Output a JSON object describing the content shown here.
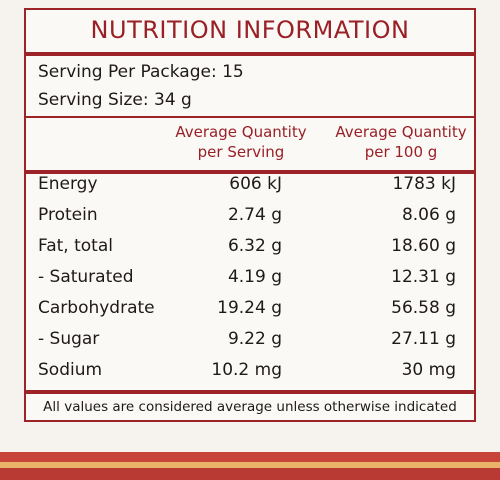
{
  "label": {
    "title": "NUTRITION INFORMATION",
    "serving_per_package": "Serving Per Package: 15",
    "serving_size": "Serving Size: 34 g",
    "columns": [
      {
        "line1": "Average Quantity",
        "line2": "per Serving"
      },
      {
        "line1": "Average Quantity",
        "line2": "per 100 g"
      }
    ],
    "rows": [
      {
        "name": "Energy",
        "per_serving": "606 kJ",
        "per_100g": "1783 kJ"
      },
      {
        "name": "Protein",
        "per_serving": "2.74 g",
        "per_100g": "8.06 g"
      },
      {
        "name": "Fat, total",
        "per_serving": "6.32 g",
        "per_100g": "18.60 g"
      },
      {
        "name": "- Saturated",
        "per_serving": "4.19 g",
        "per_100g": "12.31 g"
      },
      {
        "name": "Carbohydrate",
        "per_serving": "19.24 g",
        "per_100g": "56.58 g"
      },
      {
        "name": "- Sugar",
        "per_serving": "9.22 g",
        "per_100g": "27.11 g"
      },
      {
        "name": "Sodium",
        "per_serving": "10.2 mg",
        "per_100g": "30 mg"
      }
    ],
    "footer": "All values are considered average unless otherwise indicated"
  },
  "colors": {
    "accent": "#9c2429",
    "text": "#1e1a1a",
    "background": "#fbf9f6"
  }
}
